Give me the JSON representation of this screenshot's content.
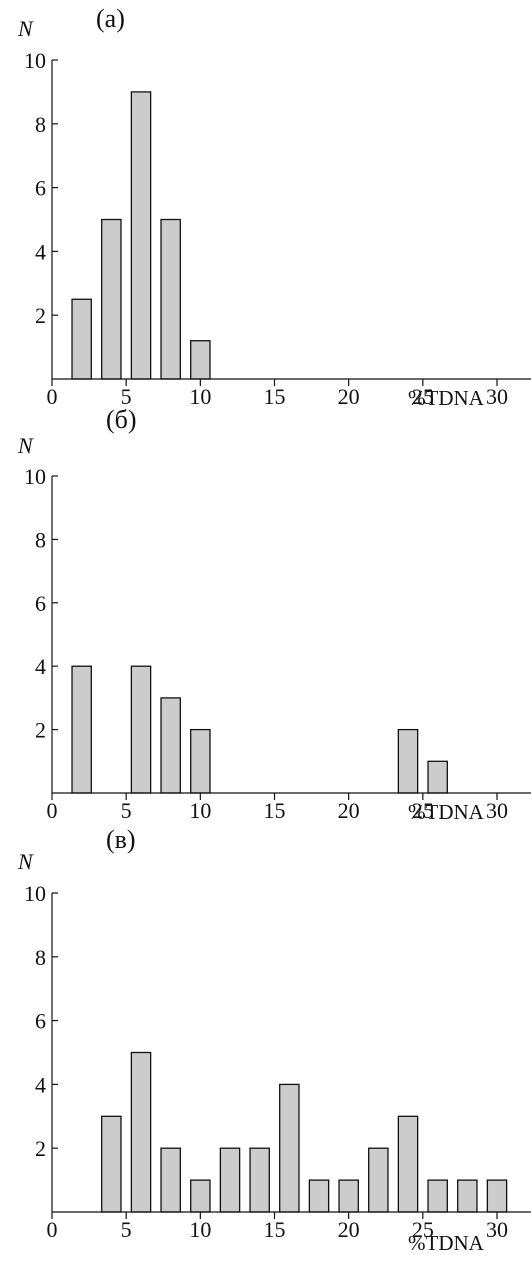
{
  "chart_data": [
    {
      "type": "bar",
      "panel_label": "(a)",
      "ylabel": "N",
      "xlabel": "%TDNA",
      "xlim": [
        0,
        32
      ],
      "ylim": [
        0,
        10
      ],
      "xticks": [
        0,
        5,
        10,
        15,
        20,
        25,
        30
      ],
      "yticks": [
        2,
        4,
        6,
        8,
        10
      ],
      "bar_width": 1.3,
      "x": [
        2,
        4,
        6,
        8,
        10
      ],
      "values": [
        2.5,
        5,
        9,
        5,
        1.2
      ],
      "bar_color": "#cccccc"
    },
    {
      "type": "bar",
      "panel_label": "(б)",
      "ylabel": "N",
      "xlabel": "%TDNA",
      "xlim": [
        0,
        32
      ],
      "ylim": [
        0,
        10
      ],
      "xticks": [
        0,
        5,
        10,
        15,
        20,
        25,
        30
      ],
      "yticks": [
        2,
        4,
        6,
        8,
        10
      ],
      "bar_width": 1.3,
      "x": [
        2,
        6,
        8,
        10,
        24,
        26
      ],
      "values": [
        4,
        4,
        3,
        2,
        2,
        1
      ],
      "bar_color": "#cccccc"
    },
    {
      "type": "bar",
      "panel_label": "(в)",
      "ylabel": "N",
      "xlabel": "%TDNA",
      "xlim": [
        0,
        32
      ],
      "ylim": [
        0,
        10
      ],
      "xticks": [
        0,
        5,
        10,
        15,
        20,
        25,
        30
      ],
      "yticks": [
        2,
        4,
        6,
        8,
        10
      ],
      "bar_width": 1.3,
      "x": [
        4,
        6,
        8,
        10,
        12,
        14,
        16,
        18,
        20,
        22,
        24,
        26,
        28,
        30
      ],
      "values": [
        3,
        5,
        2,
        1,
        2,
        2,
        4,
        1,
        1,
        2,
        3,
        1,
        1,
        1
      ],
      "bar_color": "#cccccc"
    }
  ]
}
